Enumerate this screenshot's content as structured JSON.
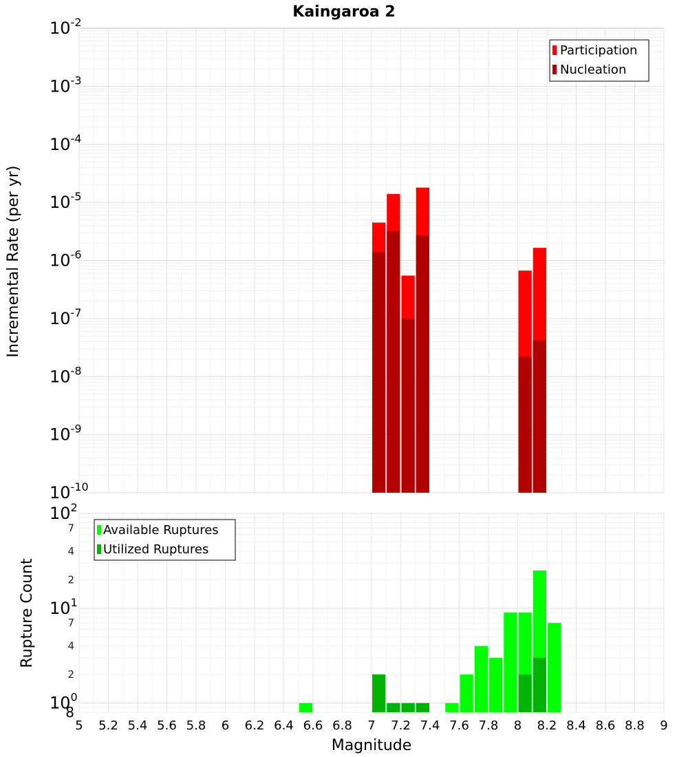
{
  "chart_data": [
    {
      "type": "bar",
      "title": "Kaingaroa 2",
      "xlabel": "",
      "ylabel": "Incremental Rate (per yr)",
      "yscale": "log",
      "ylim": [
        1e-10,
        0.01
      ],
      "xlim": [
        5,
        9
      ],
      "bar_width": 0.1,
      "legend": {
        "position": "top-right"
      },
      "y_ticks": [
        {
          "base": "10",
          "exp": "-10"
        },
        {
          "base": "10",
          "exp": "-9"
        },
        {
          "base": "10",
          "exp": "-8"
        },
        {
          "base": "10",
          "exp": "-7"
        },
        {
          "base": "10",
          "exp": "-6"
        },
        {
          "base": "10",
          "exp": "-5"
        },
        {
          "base": "10",
          "exp": "-4"
        },
        {
          "base": "10",
          "exp": "-3"
        },
        {
          "base": "10",
          "exp": "-2"
        }
      ],
      "series": [
        {
          "name": "Participation",
          "color": "#ff0000",
          "x": [
            7.05,
            7.15,
            7.25,
            7.35,
            8.05,
            8.15
          ],
          "values": [
            4.5e-06,
            1.4e-05,
            5.5e-07,
            1.8e-05,
            6.7e-07,
            1.65e-06
          ]
        },
        {
          "name": "Nucleation",
          "color": "#b20000",
          "x": [
            7.05,
            7.15,
            7.25,
            7.35,
            8.05,
            8.15
          ],
          "values": [
            1.4e-06,
            3.2e-06,
            1e-07,
            2.7e-06,
            2.2e-08,
            4.2e-08
          ]
        }
      ]
    },
    {
      "type": "bar",
      "title": "",
      "xlabel": "Magnitude",
      "ylabel": "Rupture Count",
      "yscale": "log",
      "ylim": [
        0.8,
        100
      ],
      "xlim": [
        5,
        9
      ],
      "bar_width": 0.1,
      "legend": {
        "position": "top-left"
      },
      "x_tick_labels": [
        "5",
        "5.2",
        "5.4",
        "5.6",
        "5.8",
        "6",
        "6.2",
        "6.4",
        "6.6",
        "6.8",
        "7",
        "7.2",
        "7.4",
        "7.6",
        "7.8",
        "8",
        "8.2",
        "8.4",
        "8.6",
        "8.8",
        "9"
      ],
      "y_major_ticks": [
        {
          "base": "10",
          "exp": "0"
        },
        {
          "base": "10",
          "exp": "1"
        },
        {
          "base": "10",
          "exp": "2"
        }
      ],
      "y_minor_ticks": [
        "2",
        "4",
        "7",
        "2",
        "4",
        "7"
      ],
      "y_bottom_label": "8",
      "series": [
        {
          "name": "Available Ruptures",
          "color": "#00ff00",
          "x": [
            6.55,
            7.05,
            7.15,
            7.25,
            7.35,
            7.55,
            7.65,
            7.75,
            7.85,
            7.95,
            8.05,
            8.15,
            8.25
          ],
          "values": [
            1,
            2,
            1,
            1,
            1,
            1,
            2,
            4,
            3,
            9,
            9,
            25,
            7
          ]
        },
        {
          "name": "Utilized Ruptures",
          "color": "#00b200",
          "x": [
            7.05,
            7.15,
            7.25,
            7.35,
            8.05,
            8.15
          ],
          "values": [
            2,
            1,
            1,
            1,
            2,
            3
          ]
        }
      ]
    }
  ]
}
